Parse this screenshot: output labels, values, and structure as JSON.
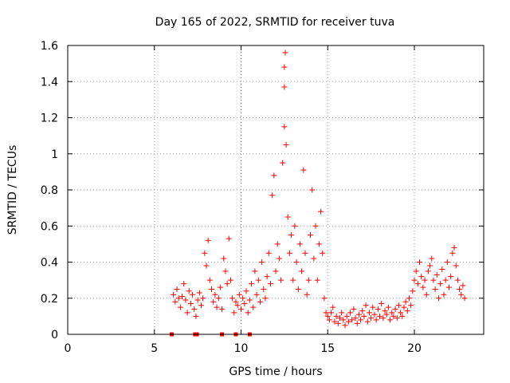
{
  "chart_data": {
    "type": "scatter",
    "title": "Day 165 of 2022, SRMTID for receiver tuva",
    "xlabel": "GPS time / hours",
    "ylabel": "SRMTID / TECUs",
    "xlim": [
      0,
      24
    ],
    "ylim": [
      0,
      1.6
    ],
    "xticks": [
      0,
      5,
      10,
      15,
      20
    ],
    "xtick_labels": [
      "0",
      "5",
      "10",
      "15",
      "20"
    ],
    "yticks": [
      0,
      0.2,
      0.4,
      0.6,
      0.8,
      1.0,
      1.2,
      1.4,
      1.6
    ],
    "ytick_labels": [
      "0",
      "0.2",
      "0.4",
      "0.6",
      "0.8",
      "1",
      "1.2",
      "1.4",
      "1.6"
    ],
    "grid": true,
    "color": "#ff0000",
    "series": [
      {
        "name": "SRMTID",
        "marker": "plus",
        "points": [
          [
            6.1,
            0.22
          ],
          [
            6.2,
            0.18
          ],
          [
            6.3,
            0.25
          ],
          [
            6.4,
            0.2
          ],
          [
            6.5,
            0.15
          ],
          [
            6.6,
            0.21
          ],
          [
            6.7,
            0.28
          ],
          [
            6.8,
            0.19
          ],
          [
            6.9,
            0.12
          ],
          [
            7.0,
            0.24
          ],
          [
            7.1,
            0.17
          ],
          [
            7.2,
            0.22
          ],
          [
            7.3,
            0.14
          ],
          [
            7.4,
            0.1
          ],
          [
            7.5,
            0.19
          ],
          [
            7.6,
            0.23
          ],
          [
            7.7,
            0.16
          ],
          [
            7.8,
            0.2
          ],
          [
            7.9,
            0.45
          ],
          [
            8.0,
            0.38
          ],
          [
            8.1,
            0.52
          ],
          [
            8.2,
            0.3
          ],
          [
            8.3,
            0.25
          ],
          [
            8.4,
            0.18
          ],
          [
            8.5,
            0.22
          ],
          [
            8.6,
            0.15
          ],
          [
            8.7,
            0.2
          ],
          [
            8.8,
            0.26
          ],
          [
            8.9,
            0.14
          ],
          [
            9.0,
            0.42
          ],
          [
            9.1,
            0.35
          ],
          [
            9.2,
            0.28
          ],
          [
            9.3,
            0.53
          ],
          [
            9.4,
            0.3
          ],
          [
            9.5,
            0.2
          ],
          [
            9.6,
            0.12
          ],
          [
            9.7,
            0.18
          ],
          [
            9.8,
            0.16
          ],
          [
            9.9,
            0.22
          ],
          [
            10.0,
            0.14
          ],
          [
            10.1,
            0.2
          ],
          [
            10.2,
            0.17
          ],
          [
            10.3,
            0.24
          ],
          [
            10.4,
            0.12
          ],
          [
            10.5,
            0.19
          ],
          [
            10.6,
            0.28
          ],
          [
            10.7,
            0.15
          ],
          [
            10.8,
            0.35
          ],
          [
            10.9,
            0.22
          ],
          [
            11.0,
            0.3
          ],
          [
            11.1,
            0.18
          ],
          [
            11.2,
            0.4
          ],
          [
            11.3,
            0.25
          ],
          [
            11.4,
            0.2
          ],
          [
            11.5,
            0.32
          ],
          [
            11.6,
            0.45
          ],
          [
            11.7,
            0.28
          ],
          [
            11.8,
            0.77
          ],
          [
            11.9,
            0.88
          ],
          [
            12.0,
            0.35
          ],
          [
            12.1,
            0.5
          ],
          [
            12.2,
            0.42
          ],
          [
            12.3,
            0.3
          ],
          [
            12.4,
            0.95
          ],
          [
            12.5,
            1.15
          ],
          [
            12.5,
            1.37
          ],
          [
            12.5,
            1.48
          ],
          [
            12.55,
            1.56
          ],
          [
            12.6,
            1.05
          ],
          [
            12.7,
            0.65
          ],
          [
            12.8,
            0.45
          ],
          [
            12.9,
            0.55
          ],
          [
            13.0,
            0.3
          ],
          [
            13.1,
            0.6
          ],
          [
            13.2,
            0.4
          ],
          [
            13.3,
            0.25
          ],
          [
            13.4,
            0.5
          ],
          [
            13.5,
            0.35
          ],
          [
            13.6,
            0.91
          ],
          [
            13.7,
            0.45
          ],
          [
            13.8,
            0.22
          ],
          [
            13.9,
            0.3
          ],
          [
            14.0,
            0.55
          ],
          [
            14.1,
            0.8
          ],
          [
            14.2,
            0.42
          ],
          [
            14.3,
            0.6
          ],
          [
            14.4,
            0.3
          ],
          [
            14.5,
            0.5
          ],
          [
            14.6,
            0.68
          ],
          [
            14.7,
            0.45
          ],
          [
            14.8,
            0.2
          ],
          [
            14.9,
            0.12
          ],
          [
            15.0,
            0.1
          ],
          [
            15.1,
            0.08
          ],
          [
            15.2,
            0.12
          ],
          [
            15.3,
            0.15
          ],
          [
            15.4,
            0.07
          ],
          [
            15.5,
            0.1
          ],
          [
            15.6,
            0.06
          ],
          [
            15.7,
            0.09
          ],
          [
            15.8,
            0.12
          ],
          [
            15.9,
            0.08
          ],
          [
            16.0,
            0.05
          ],
          [
            16.1,
            0.1
          ],
          [
            16.2,
            0.07
          ],
          [
            16.3,
            0.12
          ],
          [
            16.4,
            0.08
          ],
          [
            16.5,
            0.14
          ],
          [
            16.6,
            0.09
          ],
          [
            16.7,
            0.06
          ],
          [
            16.8,
            0.11
          ],
          [
            16.9,
            0.08
          ],
          [
            17.0,
            0.13
          ],
          [
            17.1,
            0.1
          ],
          [
            17.2,
            0.16
          ],
          [
            17.3,
            0.07
          ],
          [
            17.4,
            0.12
          ],
          [
            17.5,
            0.09
          ],
          [
            17.6,
            0.15
          ],
          [
            17.7,
            0.11
          ],
          [
            17.8,
            0.08
          ],
          [
            17.9,
            0.14
          ],
          [
            18.0,
            0.1
          ],
          [
            18.1,
            0.17
          ],
          [
            18.2,
            0.09
          ],
          [
            18.3,
            0.13
          ],
          [
            18.4,
            0.11
          ],
          [
            18.5,
            0.15
          ],
          [
            18.6,
            0.08
          ],
          [
            18.7,
            0.12
          ],
          [
            18.8,
            0.1
          ],
          [
            18.9,
            0.14
          ],
          [
            19.0,
            0.09
          ],
          [
            19.1,
            0.16
          ],
          [
            19.2,
            0.12
          ],
          [
            19.3,
            0.1
          ],
          [
            19.4,
            0.15
          ],
          [
            19.5,
            0.18
          ],
          [
            19.6,
            0.13
          ],
          [
            19.7,
            0.2
          ],
          [
            19.8,
            0.16
          ],
          [
            19.9,
            0.24
          ],
          [
            20.0,
            0.3
          ],
          [
            20.1,
            0.35
          ],
          [
            20.2,
            0.28
          ],
          [
            20.3,
            0.4
          ],
          [
            20.4,
            0.32
          ],
          [
            20.5,
            0.26
          ],
          [
            20.6,
            0.3
          ],
          [
            20.7,
            0.22
          ],
          [
            20.8,
            0.35
          ],
          [
            20.9,
            0.38
          ],
          [
            21.0,
            0.42
          ],
          [
            21.1,
            0.3
          ],
          [
            21.2,
            0.25
          ],
          [
            21.3,
            0.33
          ],
          [
            21.4,
            0.2
          ],
          [
            21.5,
            0.28
          ],
          [
            21.6,
            0.36
          ],
          [
            21.7,
            0.22
          ],
          [
            21.8,
            0.3
          ],
          [
            21.9,
            0.4
          ],
          [
            22.0,
            0.26
          ],
          [
            22.1,
            0.32
          ],
          [
            22.2,
            0.45
          ],
          [
            22.3,
            0.48
          ],
          [
            22.4,
            0.38
          ],
          [
            22.5,
            0.3
          ],
          [
            22.6,
            0.25
          ],
          [
            22.7,
            0.22
          ],
          [
            22.8,
            0.27
          ],
          [
            22.9,
            0.2
          ]
        ]
      },
      {
        "name": "zero markers",
        "marker": "square",
        "points": [
          [
            6.0,
            0
          ],
          [
            7.35,
            0
          ],
          [
            7.45,
            0
          ],
          [
            8.9,
            0
          ],
          [
            9.7,
            0
          ],
          [
            10.5,
            0
          ]
        ]
      }
    ]
  }
}
